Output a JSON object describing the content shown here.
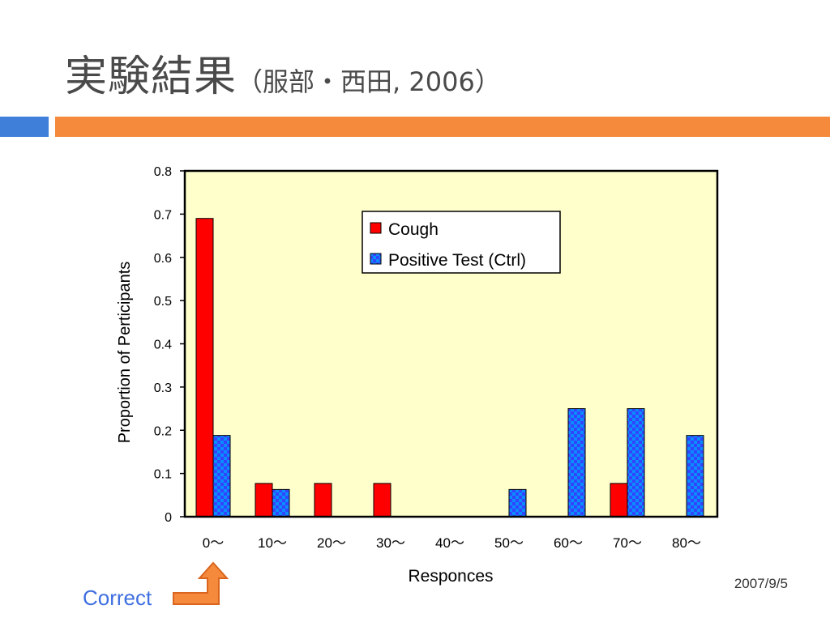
{
  "slide": {
    "title_main": "実験結果",
    "title_sub": "（服部・西田, 2006）",
    "date": "2007/9/5",
    "correct_label": "Correct"
  },
  "colors": {
    "accent_blue": "#3f7fd9",
    "accent_orange": "#f58a3c",
    "plot_background": "#ffffcc",
    "cough": "#ff0000",
    "positive_test": "#3344ff"
  },
  "chart_data": {
    "type": "bar",
    "title": "",
    "xlabel": "Responces",
    "ylabel": "Proportion of Perticipants",
    "categories": [
      "0〜",
      "10〜",
      "20〜",
      "30〜",
      "40〜",
      "50〜",
      "60〜",
      "70〜",
      "80〜"
    ],
    "series": [
      {
        "name": "Cough",
        "values": [
          0.69,
          0.077,
          0.077,
          0.077,
          0,
          0,
          0,
          0.077,
          0
        ],
        "color": "#ff0000",
        "pattern": "solid"
      },
      {
        "name": "Positive Test (Ctrl)",
        "values": [
          0.188,
          0.063,
          0,
          0,
          0,
          0.063,
          0.25,
          0.25,
          0.188
        ],
        "color": "#3344ff",
        "pattern": "checkered"
      }
    ],
    "ylim": [
      0,
      0.8
    ],
    "yticks": [
      "0",
      "0.1",
      "0.2",
      "0.3",
      "0.4",
      "0.5",
      "0.6",
      "0.7",
      "0.8"
    ],
    "grid": false,
    "legend_position": "top-right"
  }
}
